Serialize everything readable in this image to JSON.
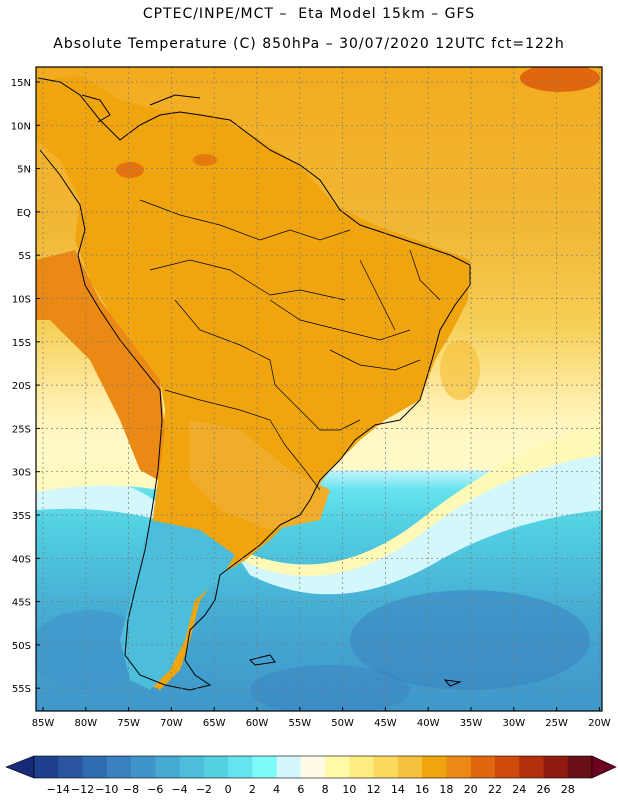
{
  "title": {
    "line1": "CPTEC/INPE/MCT –  Eta Model 15km – GFS",
    "line2": "Absolute Temperature (C) 850hPa – 30/07/2020 12UTC fct=122h"
  },
  "map": {
    "lat_labels": [
      "15N",
      "10N",
      "5N",
      "EQ",
      "5S",
      "10S",
      "15S",
      "20S",
      "25S",
      "30S",
      "35S",
      "40S",
      "45S",
      "50S",
      "55S"
    ],
    "lon_labels": [
      "85W",
      "80W",
      "75W",
      "70W",
      "65W",
      "60W",
      "55W",
      "50W",
      "45W",
      "40W",
      "35W",
      "30W",
      "25W",
      "20W"
    ],
    "region": "South America"
  },
  "colorbar": {
    "labels": [
      "-14",
      "-12",
      "-10",
      "-8",
      "-6",
      "-4",
      "-2",
      "0",
      "2",
      "4",
      "6",
      "8",
      "10",
      "12",
      "14",
      "16",
      "18",
      "20",
      "22",
      "24",
      "26",
      "28"
    ],
    "colors": [
      "#1f3f8f",
      "#2a56a0",
      "#2f6cb2",
      "#3a82bf",
      "#3f95c9",
      "#45a9d2",
      "#4cbddb",
      "#54d0e3",
      "#66e4ee",
      "#7dfafa",
      "#d4f7fb",
      "#fffbe6",
      "#fff9a8",
      "#fdec80",
      "#fbd95f",
      "#f6c23d",
      "#f0a50f",
      "#ea8a14",
      "#e1670f",
      "#cf4a0c",
      "#b3300c",
      "#8e1c10",
      "#6a0f16"
    ],
    "under_color": "#1a2a7a",
    "over_color": "#6b0020"
  }
}
